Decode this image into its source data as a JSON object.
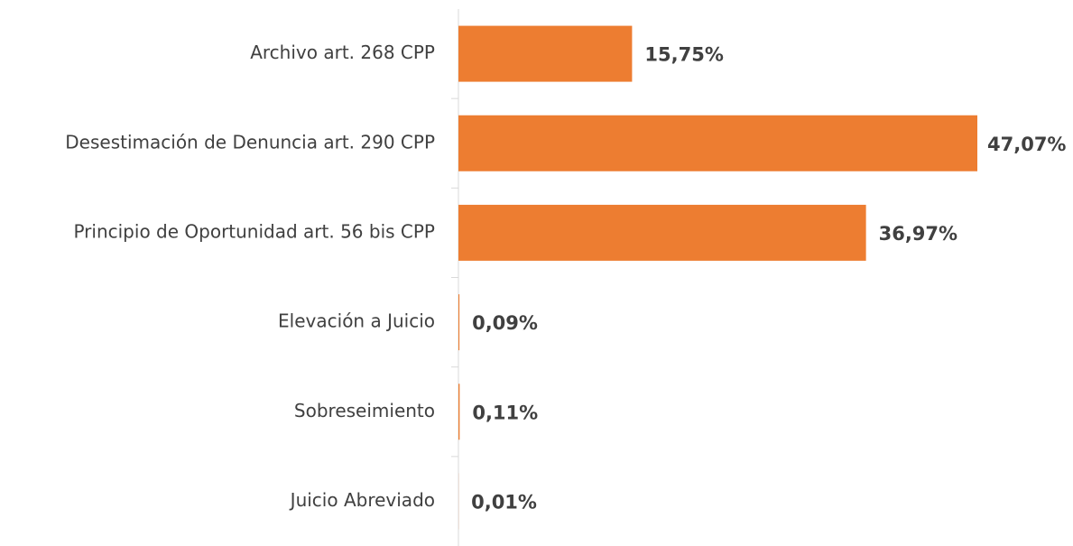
{
  "chart_data": {
    "type": "bar",
    "orientation": "horizontal",
    "categories": [
      "Archivo art. 268 CPP",
      "Desestimación de Denuncia art. 290 CPP",
      "Principio de Oportunidad art. 56 bis CPP",
      "Elevación a Juicio",
      "Sobreseimiento",
      "Juicio Abreviado"
    ],
    "values": [
      15.75,
      47.07,
      36.97,
      0.09,
      0.11,
      0.01
    ],
    "value_labels": [
      "15,75%",
      "47,07%",
      "36,97%",
      "0,09%",
      "0,11%",
      "0,01%"
    ],
    "color": "#ed7d31"
  }
}
